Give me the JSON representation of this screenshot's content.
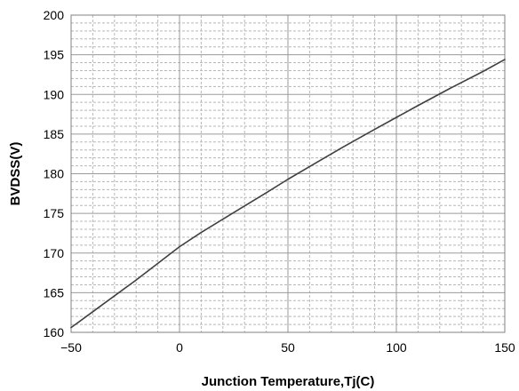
{
  "chart_data": {
    "type": "line",
    "title": "",
    "xlabel": "Junction Temperature,Tj(C)",
    "ylabel": "BVDSS(V)",
    "xlim": [
      -50,
      150
    ],
    "ylim": [
      160,
      200
    ],
    "xticks": [
      "−50",
      "0",
      "50",
      "100",
      "150"
    ],
    "yticks": [
      "160",
      "165",
      "170",
      "175",
      "180",
      "185",
      "190",
      "195",
      "200"
    ],
    "grid": true,
    "legend": "none",
    "series": [
      {
        "color": "#404040",
        "x": [
          -50,
          -40,
          -30,
          -20,
          -10,
          0,
          10,
          25,
          40,
          50,
          60,
          75,
          90,
          100,
          110,
          125,
          140,
          150
        ],
        "y": [
          160.6,
          162.6,
          164.6,
          166.6,
          168.7,
          170.8,
          172.6,
          175.1,
          177.6,
          179.3,
          180.9,
          183.3,
          185.6,
          187.1,
          188.6,
          190.8,
          192.9,
          194.4
        ]
      }
    ]
  }
}
